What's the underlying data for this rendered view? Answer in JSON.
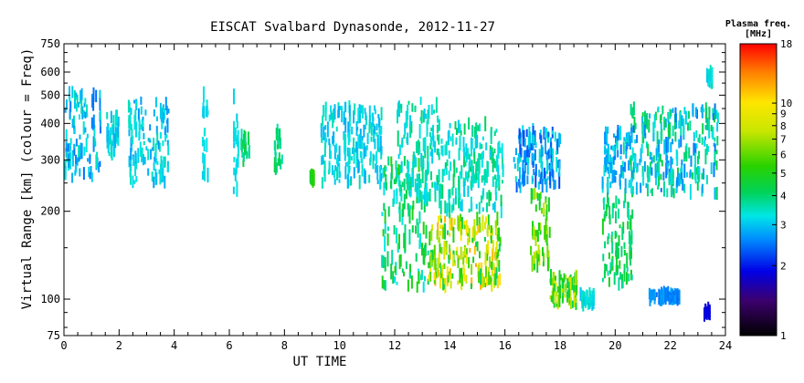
{
  "chart_data": {
    "type": "scatter",
    "title": "EISCAT Svalbard Dynasonde, 2012-11-27",
    "xlabel": "UT TIME",
    "ylabel": "Virtual Range [km] (colour = Freq)",
    "xlim": [
      0,
      24
    ],
    "ylim": [
      75,
      750
    ],
    "y_scale": "log",
    "x_ticks": [
      "0",
      "2",
      "4",
      "6",
      "8",
      "10",
      "12",
      "14",
      "16",
      "18",
      "20",
      "22",
      "24"
    ],
    "y_ticks": [
      "75",
      "100",
      "200",
      "300",
      "400",
      "500",
      "600",
      "750"
    ],
    "colorbar": {
      "title": "Plasma freq.",
      "units": "[MHz]",
      "scale": "log",
      "range": [
        1,
        18
      ],
      "ticks": [
        "1",
        "2",
        "3",
        "4",
        "5",
        "6",
        "7",
        "8",
        "9",
        "10",
        "18"
      ]
    },
    "clusters": [
      {
        "x": [
          0.0,
          1.3
        ],
        "y": [
          260,
          520
        ],
        "f": [
          2.4,
          3.6
        ]
      },
      {
        "x": [
          1.5,
          2.0
        ],
        "y": [
          300,
          430
        ],
        "f": [
          2.8,
          3.6
        ]
      },
      {
        "x": [
          2.3,
          3.8
        ],
        "y": [
          250,
          480
        ],
        "f": [
          2.6,
          3.6
        ]
      },
      {
        "x": [
          5.0,
          5.2
        ],
        "y": [
          260,
          540
        ],
        "f": [
          3.0,
          3.4
        ]
      },
      {
        "x": [
          6.1,
          6.3
        ],
        "y": [
          230,
          500
        ],
        "f": [
          3.0,
          3.4
        ]
      },
      {
        "x": [
          6.4,
          6.7
        ],
        "y": [
          280,
          380
        ],
        "f": [
          3.5,
          4.5
        ]
      },
      {
        "x": [
          7.6,
          7.9
        ],
        "y": [
          280,
          380
        ],
        "f": [
          3.5,
          4.5
        ]
      },
      {
        "x": [
          8.9,
          9.1
        ],
        "y": [
          250,
          270
        ],
        "f": [
          4.5,
          5.5
        ]
      },
      {
        "x": [
          9.3,
          11.5
        ],
        "y": [
          250,
          460
        ],
        "f": [
          2.8,
          3.6
        ]
      },
      {
        "x": [
          11.5,
          13.2
        ],
        "y": [
          110,
          300
        ],
        "f": [
          3.2,
          5.5
        ]
      },
      {
        "x": [
          12.0,
          13.6
        ],
        "y": [
          220,
          480
        ],
        "f": [
          3.0,
          4.0
        ]
      },
      {
        "x": [
          13.2,
          15.8
        ],
        "y": [
          110,
          190
        ],
        "f": [
          4.0,
          12.0
        ]
      },
      {
        "x": [
          13.5,
          15.9
        ],
        "y": [
          200,
          400
        ],
        "f": [
          3.0,
          4.2
        ]
      },
      {
        "x": [
          16.3,
          18.0
        ],
        "y": [
          240,
          380
        ],
        "f": [
          2.2,
          3.5
        ]
      },
      {
        "x": [
          16.9,
          17.6
        ],
        "y": [
          130,
          230
        ],
        "f": [
          4.5,
          8.0
        ]
      },
      {
        "x": [
          17.6,
          18.6
        ],
        "y": [
          95,
          120
        ],
        "f": [
          4.0,
          9.0
        ]
      },
      {
        "x": [
          18.7,
          19.2
        ],
        "y": [
          95,
          105
        ],
        "f": [
          3.0,
          3.6
        ]
      },
      {
        "x": [
          19.5,
          20.6
        ],
        "y": [
          110,
          230
        ],
        "f": [
          3.5,
          5.0
        ]
      },
      {
        "x": [
          19.5,
          20.5
        ],
        "y": [
          240,
          380
        ],
        "f": [
          2.4,
          3.6
        ]
      },
      {
        "x": [
          20.5,
          23.7
        ],
        "y": [
          230,
          450
        ],
        "f": [
          2.4,
          4.5
        ]
      },
      {
        "x": [
          21.2,
          22.3
        ],
        "y": [
          100,
          105
        ],
        "f": [
          2.4,
          2.8
        ]
      },
      {
        "x": [
          23.2,
          23.4
        ],
        "y": [
          88,
          92
        ],
        "f": [
          1.8,
          2.0
        ]
      },
      {
        "x": [
          23.3,
          23.5
        ],
        "y": [
          540,
          600
        ],
        "f": [
          3.0,
          3.6
        ]
      }
    ]
  }
}
